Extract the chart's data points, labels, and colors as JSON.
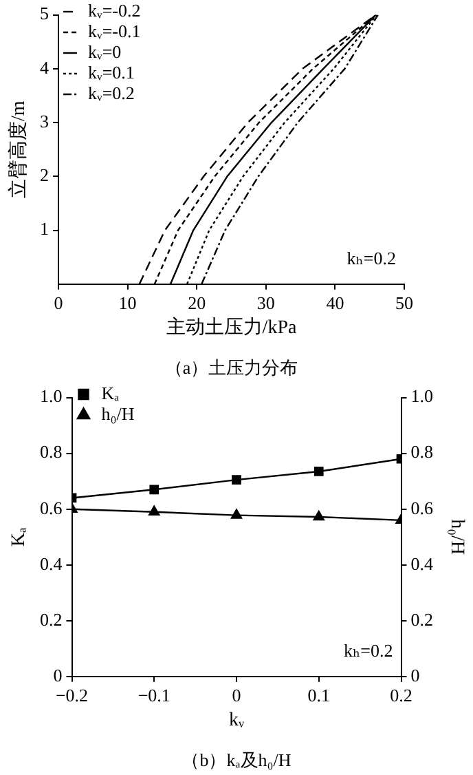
{
  "chart_data": [
    {
      "type": "line",
      "title": "（a）土压力分布",
      "xlabel": "主动土压力/kPa",
      "ylabel": "立臂高度/m",
      "legend": "top left",
      "xlim": [
        0,
        50
      ],
      "xticks": [
        0,
        10,
        20,
        30,
        40,
        50
      ],
      "ylim": [
        0,
        5
      ],
      "yticks": [
        1,
        2,
        3,
        4,
        5
      ],
      "marker": "none",
      "annotations": [
        "kₕ=0.2"
      ],
      "series": [
        {
          "name": "kᵥ=-0.2",
          "color": "#000000",
          "line_style": "dashed",
          "x": [
            11.7,
            15.4,
            21.0,
            27.4,
            35.3,
            45.9
          ],
          "values": [
            0,
            1,
            2,
            3,
            4,
            5
          ]
        },
        {
          "name": "kᵥ=-0.1",
          "color": "#000000",
          "line_style": "dashed",
          "x": [
            13.9,
            17.3,
            22.6,
            29.0,
            36.8,
            45.9
          ],
          "values": [
            0,
            1,
            2,
            3,
            4,
            5
          ]
        },
        {
          "name": "kᵥ=0",
          "color": "#000000",
          "line_style": "solid",
          "x": [
            16.2,
            19.5,
            24.4,
            30.8,
            38.3,
            45.9
          ],
          "values": [
            0,
            1,
            2,
            3,
            4,
            5
          ]
        },
        {
          "name": "kᵥ=0.1",
          "color": "#000000",
          "line_style": "dotted",
          "x": [
            18.6,
            21.8,
            26.7,
            32.7,
            39.8,
            46.0
          ],
          "values": [
            0,
            1,
            2,
            3,
            4,
            5
          ]
        },
        {
          "name": "kᵥ=0.2",
          "color": "#000000",
          "line_style": "dotted",
          "x": [
            20.7,
            24.1,
            28.9,
            34.6,
            41.4,
            46.2
          ],
          "values": [
            0,
            1,
            2,
            3,
            4,
            5
          ]
        }
      ]
    },
    {
      "type": "line",
      "title": "（b）kₐ及h₀/H",
      "xlabel": "kᵥ",
      "ylabel": "Kₐ",
      "y2label": "h₀/H",
      "legend": "top left",
      "x": [
        -0.2,
        -0.1,
        0,
        0.1,
        0.2
      ],
      "xlim": [
        -0.2,
        0.2
      ],
      "xticks": [
        {
          "value": -0.2,
          "label": "−0.2"
        },
        {
          "value": -0.1,
          "label": "−0.1"
        },
        0,
        0.1,
        0.2
      ],
      "ylim": [
        0,
        1
      ],
      "yticks": [
        0,
        0.2,
        0.4,
        0.6,
        0.8,
        {
          "value": 1,
          "label": "1.0"
        }
      ],
      "y2lim": [
        0,
        1
      ],
      "y2ticks": [
        0,
        0.2,
        0.4,
        0.6,
        0.8,
        {
          "value": 1,
          "label": "1.0"
        }
      ],
      "annotations": [
        "kₕ=0.2"
      ],
      "series": [
        {
          "name": "Kₐ",
          "color": "#000000",
          "marker": "square",
          "values": [
            0.64,
            0.67,
            0.705,
            0.735,
            0.78
          ]
        },
        {
          "name": "h₀/H",
          "color": "#000000",
          "marker": "triangle",
          "axis": "y2",
          "values": [
            0.6,
            0.59,
            0.578,
            0.572,
            0.56
          ]
        }
      ]
    }
  ]
}
